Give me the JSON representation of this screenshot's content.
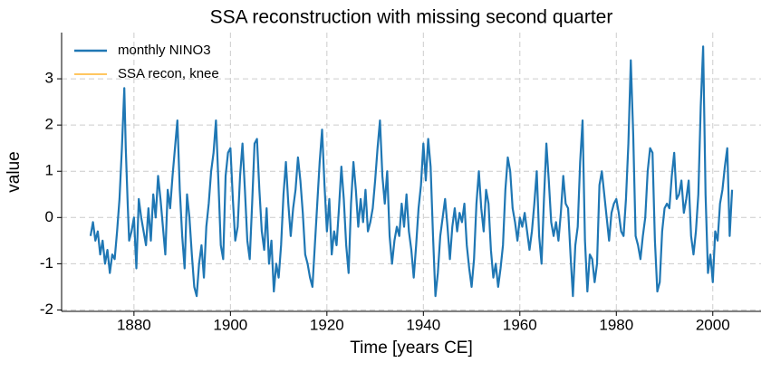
{
  "chart_data": {
    "type": "line",
    "title": "SSA reconstruction with missing second quarter",
    "x_label": "Time [years CE]",
    "y_label": "value",
    "xlim": [
      1865,
      2010
    ],
    "ylim": [
      -2.03,
      4.0
    ],
    "xticks": [
      1880,
      1900,
      1920,
      1940,
      1960,
      1980,
      2000
    ],
    "yticks": [
      -2,
      -1,
      0,
      1,
      2,
      3
    ],
    "grid": true,
    "legend": "upper-left",
    "series": [
      {
        "name": "monthly NINO3",
        "color": "#1f77b4",
        "x": [
          1871,
          1871.5,
          1872,
          1872.5,
          1873,
          1873.5,
          1874,
          1874.5,
          1875,
          1875.5,
          1876,
          1876.5,
          1877,
          1877.5,
          1878,
          1878.3,
          1878.7,
          1879,
          1879.5,
          1880,
          1880.5,
          1881,
          1881.5,
          1882,
          1882.5,
          1883,
          1883.5,
          1884,
          1884.5,
          1885,
          1885.5,
          1886,
          1886.5,
          1887,
          1887.5,
          1888,
          1888.5,
          1889,
          1889.5,
          1890,
          1890.5,
          1891,
          1891.5,
          1892,
          1892.5,
          1893,
          1893.5,
          1894,
          1894.5,
          1895,
          1895.5,
          1896,
          1896.5,
          1897,
          1897.5,
          1898,
          1898.5,
          1899,
          1899.5,
          1900,
          1900.5,
          1901,
          1901.5,
          1902,
          1902.5,
          1903,
          1903.5,
          1904,
          1904.5,
          1905,
          1905.5,
          1906,
          1906.5,
          1907,
          1907.5,
          1908,
          1908.5,
          1909,
          1909.5,
          1910,
          1910.5,
          1911,
          1911.5,
          1912,
          1912.5,
          1913,
          1913.5,
          1914,
          1914.5,
          1915,
          1915.5,
          1916,
          1916.5,
          1917,
          1917.5,
          1918,
          1918.5,
          1919,
          1919.5,
          1920,
          1920.5,
          1921,
          1921.5,
          1922,
          1922.5,
          1923,
          1923.5,
          1924,
          1924.5,
          1925,
          1925.5,
          1926,
          1926.5,
          1927,
          1927.5,
          1928,
          1928.5,
          1929,
          1929.5,
          1930,
          1930.5,
          1931,
          1931.5,
          1932,
          1932.5,
          1933,
          1933.5,
          1934,
          1934.5,
          1935,
          1935.5,
          1936,
          1936.5,
          1937,
          1937.5,
          1938,
          1938.5,
          1939,
          1939.5,
          1940,
          1940.5,
          1941,
          1941.5,
          1942,
          1942.5,
          1943,
          1943.5,
          1944,
          1944.5,
          1945,
          1945.5,
          1946,
          1946.5,
          1947,
          1947.5,
          1948,
          1948.5,
          1949,
          1949.5,
          1950,
          1950.5,
          1951,
          1951.5,
          1952,
          1952.5,
          1953,
          1953.5,
          1954,
          1954.5,
          1955,
          1955.5,
          1956,
          1956.5,
          1957,
          1957.5,
          1958,
          1958.5,
          1959,
          1959.5,
          1960,
          1960.5,
          1961,
          1961.5,
          1962,
          1962.5,
          1963,
          1963.5,
          1964,
          1964.5,
          1965,
          1965.5,
          1966,
          1966.5,
          1967,
          1967.5,
          1968,
          1968.5,
          1969,
          1969.5,
          1970,
          1970.5,
          1971,
          1971.5,
          1972,
          1972.5,
          1973,
          1973.5,
          1974,
          1974.5,
          1975,
          1975.5,
          1976,
          1976.5,
          1977,
          1977.5,
          1978,
          1978.5,
          1979,
          1979.5,
          1980,
          1980.5,
          1981,
          1981.5,
          1982,
          1982.5,
          1983,
          1983.5,
          1984,
          1984.5,
          1985,
          1985.5,
          1986,
          1986.5,
          1987,
          1987.5,
          1988,
          1988.5,
          1989,
          1989.5,
          1990,
          1990.5,
          1991,
          1991.5,
          1992,
          1992.5,
          1993,
          1993.5,
          1994,
          1994.5,
          1995,
          1995.5,
          1996,
          1996.5,
          1997,
          1997.5,
          1998,
          1998.5,
          1999,
          1999.5,
          2000,
          2000.5,
          2001,
          2001.5,
          2002,
          2002.5,
          2003,
          2003.5,
          2004
        ],
        "values": [
          -0.4,
          -0.1,
          -0.5,
          -0.3,
          -0.8,
          -0.5,
          -1.0,
          -0.7,
          -1.2,
          -0.8,
          -0.9,
          -0.3,
          0.4,
          1.5,
          2.8,
          1.5,
          0.3,
          -0.5,
          -0.3,
          0.0,
          -1.1,
          0.4,
          0.0,
          -0.3,
          -0.6,
          0.2,
          -0.5,
          0.5,
          0.0,
          0.9,
          0.4,
          -0.2,
          -0.8,
          0.6,
          0.2,
          0.9,
          1.5,
          2.1,
          0.6,
          -0.4,
          -1.1,
          0.5,
          0.0,
          -0.8,
          -1.5,
          -1.7,
          -1.0,
          -0.6,
          -1.3,
          -0.2,
          0.3,
          1.0,
          1.4,
          2.1,
          0.8,
          -0.6,
          -0.9,
          0.9,
          1.4,
          1.5,
          0.4,
          -0.5,
          -0.2,
          0.9,
          1.6,
          0.6,
          -0.5,
          -0.9,
          0.3,
          1.6,
          1.7,
          0.6,
          -0.3,
          -0.7,
          0.2,
          -1.0,
          -0.5,
          -1.6,
          -1.0,
          -1.3,
          -0.6,
          0.5,
          1.2,
          0.3,
          -0.4,
          0.2,
          0.6,
          1.3,
          0.8,
          0.1,
          -0.8,
          -1.0,
          -1.3,
          -1.5,
          -0.6,
          0.3,
          1.2,
          1.9,
          0.7,
          -0.3,
          0.4,
          -0.8,
          -0.3,
          -0.6,
          0.2,
          1.1,
          0.4,
          -0.6,
          -1.2,
          0.3,
          1.2,
          0.6,
          -0.2,
          0.4,
          -0.1,
          0.6,
          -0.3,
          -0.1,
          0.2,
          0.8,
          1.5,
          2.1,
          0.9,
          0.3,
          1.0,
          -0.4,
          -1.0,
          -0.5,
          -0.2,
          -0.4,
          0.3,
          -0.2,
          0.5,
          -0.3,
          -0.7,
          -1.3,
          -0.6,
          0.2,
          0.7,
          1.6,
          0.8,
          1.7,
          1.1,
          -0.4,
          -1.7,
          -1.2,
          -0.4,
          0.0,
          0.4,
          -0.2,
          -0.9,
          -0.2,
          0.2,
          -0.3,
          0.1,
          -0.1,
          0.3,
          -0.6,
          -1.1,
          -1.5,
          -0.9,
          0.3,
          1.0,
          0.2,
          -0.3,
          0.6,
          0.3,
          -0.7,
          -1.3,
          -1.0,
          -1.5,
          -1.1,
          -0.6,
          0.6,
          1.3,
          1.0,
          0.2,
          -0.1,
          -0.5,
          0.0,
          -0.2,
          0.1,
          -0.3,
          -0.7,
          -0.3,
          0.3,
          1.0,
          -0.4,
          -1.0,
          0.4,
          1.6,
          0.8,
          -0.1,
          -0.4,
          -0.1,
          -0.5,
          0.1,
          0.9,
          0.3,
          0.2,
          -0.8,
          -1.7,
          -0.6,
          -0.2,
          1.2,
          2.1,
          -0.5,
          -1.6,
          -0.8,
          -0.9,
          -1.4,
          -1.0,
          0.7,
          1.0,
          0.5,
          0.0,
          -0.5,
          0.1,
          0.3,
          0.4,
          0.1,
          -0.3,
          -0.4,
          0.4,
          1.6,
          3.4,
          1.8,
          -0.4,
          -0.6,
          -0.9,
          -0.4,
          0.0,
          1.0,
          1.5,
          1.4,
          -0.5,
          -1.6,
          -1.4,
          -0.3,
          0.2,
          0.3,
          0.2,
          0.9,
          1.4,
          0.4,
          0.5,
          0.8,
          0.1,
          0.4,
          0.8,
          -0.4,
          -0.8,
          -0.3,
          0.5,
          2.4,
          3.7,
          0.5,
          -1.2,
          -0.8,
          -1.4,
          -0.3,
          -0.5,
          0.3,
          0.6,
          1.1,
          1.5,
          -0.4,
          0.6
        ]
      },
      {
        "name": "SSA recon, knee",
        "color": "#ffa500",
        "x": [],
        "values": []
      }
    ]
  }
}
